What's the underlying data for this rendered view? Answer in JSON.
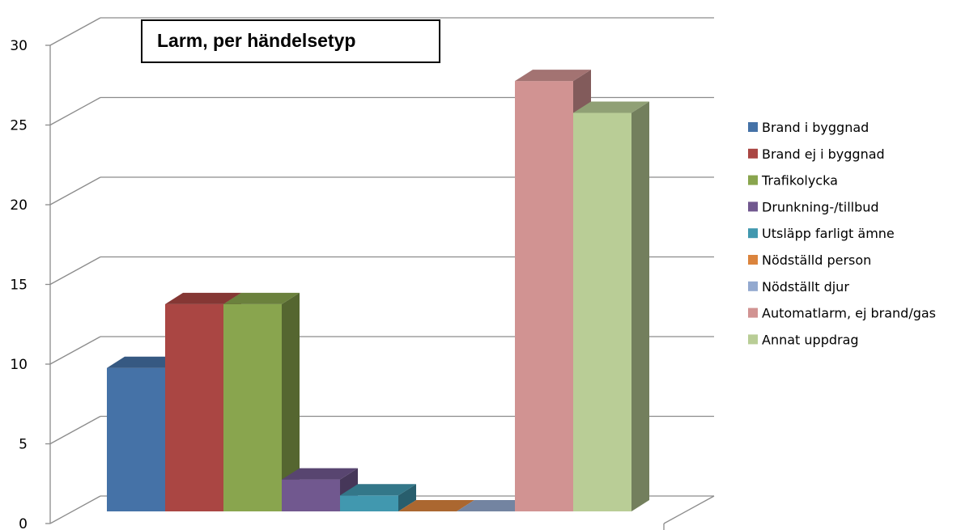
{
  "chart_data": {
    "type": "bar",
    "title": "Larm, per händelsetyp",
    "categories": [
      "Brand i byggnad",
      "Brand ej i byggnad",
      "Trafikolycka",
      "Drunkning-/tillbud",
      "Utsläpp farligt ämne",
      "Nödställd person",
      "Nödställt djur",
      "Automatlarm, ej brand/gas",
      "Annat uppdrag"
    ],
    "values": [
      9,
      13,
      13,
      2,
      1,
      0,
      0,
      27,
      25
    ],
    "colors": [
      "#4572a7",
      "#aa4643",
      "#89a54e",
      "#71588f",
      "#4198af",
      "#db843d",
      "#93a9cf",
      "#d19392",
      "#b9cd96"
    ],
    "yticks": [
      "0",
      "5",
      "10",
      "15",
      "20",
      "25",
      "30"
    ],
    "ylim": [
      0,
      30
    ],
    "grid": true,
    "legend_position": "right",
    "three_d": true
  }
}
